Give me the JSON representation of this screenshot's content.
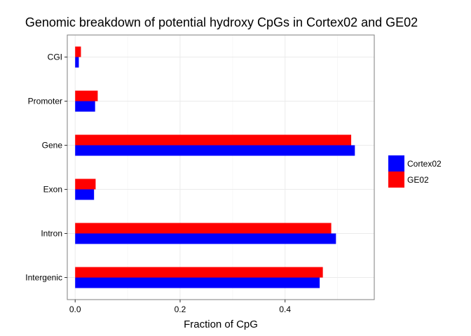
{
  "chart_data": {
    "type": "bar",
    "orientation": "horizontal",
    "title": "Genomic breakdown of potential hydroxy CpGs in Cortex02 and GE02",
    "xlabel": "Fraction of CpG",
    "ylabel": "",
    "xlim": [
      -0.015,
      0.57
    ],
    "x_ticks": [
      0.0,
      0.2,
      0.4
    ],
    "x_tick_labels": [
      "0.0",
      "0.2",
      "0.4"
    ],
    "categories": [
      "CGI",
      "Promoter",
      "Gene",
      "Exon",
      "Intron",
      "Intergenic"
    ],
    "series": [
      {
        "name": "Cortex02",
        "color": "#0000ff",
        "values": [
          0.007,
          0.038,
          0.533,
          0.036,
          0.497,
          0.466
        ]
      },
      {
        "name": "GE02",
        "color": "#ff0000",
        "values": [
          0.011,
          0.043,
          0.526,
          0.039,
          0.488,
          0.472
        ]
      }
    ],
    "grid": true,
    "legend_position": "right"
  }
}
